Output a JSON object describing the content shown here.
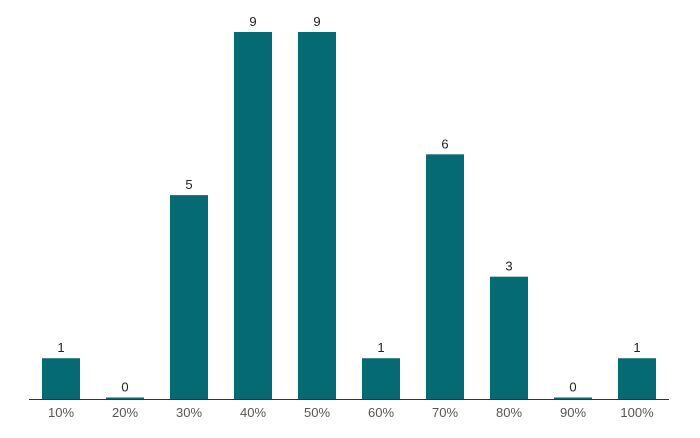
{
  "colors": {
    "bar": "#056a73",
    "axis": "#333333",
    "label": "#212121",
    "tick": "#555555",
    "background": "#ffffff"
  },
  "chart_data": {
    "type": "bar",
    "categories": [
      "10%",
      "20%",
      "30%",
      "40%",
      "50%",
      "60%",
      "70%",
      "80%",
      "90%",
      "100%"
    ],
    "values": [
      1,
      0,
      5,
      9,
      9,
      1,
      6,
      3,
      0,
      1
    ],
    "title": "",
    "xlabel": "",
    "ylabel": "",
    "ylim": [
      0,
      9
    ],
    "grid": false,
    "legend": "none",
    "data_labels": true
  }
}
